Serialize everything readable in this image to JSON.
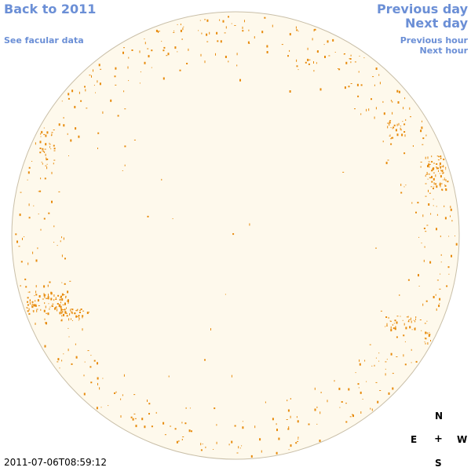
{
  "nav": {
    "back": "Back to 2011",
    "facular": "See facular data",
    "previous_day": "Previous day",
    "next_day": "Next day",
    "previous_hour": "Previous hour",
    "next_hour": "Next hour"
  },
  "timestamp": "2011-07-06T08:59:12",
  "compass": {
    "n": "N",
    "s": "S",
    "e": "E",
    "w": "W",
    "center": "+"
  },
  "colors": {
    "disk_fill": "#fef9ec",
    "disk_edge": "#c9bfa8",
    "facula": "#e78a0b",
    "link": "#6b8fd6"
  }
}
